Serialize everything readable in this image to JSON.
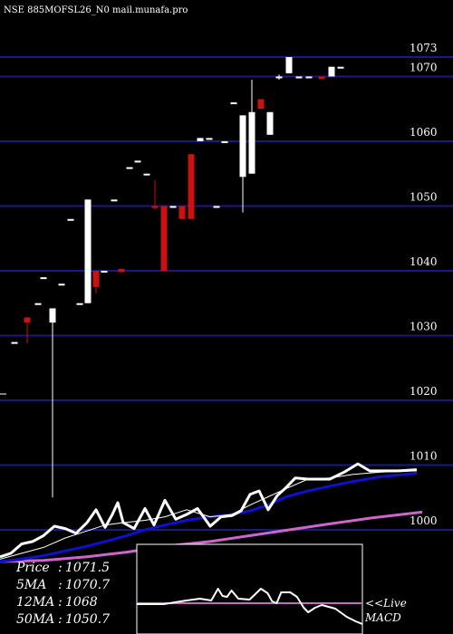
{
  "header": {
    "title": "NSE 885MOFSL26_N0  mail.munafa.pro"
  },
  "colors": {
    "background": "#000000",
    "grid": "#1a1a80",
    "up_candle": "#ffffff",
    "down_candle": "#cc1111",
    "price_line": "#ffffff",
    "ma5": "#ffffff",
    "ma12": "#1010cc",
    "ma50": "#cc66cc",
    "macd_line": "#ffffff",
    "macd_signal": "#cc66cc"
  },
  "chart_data": {
    "type": "candlestick",
    "y_ticks": [
      1000,
      1010,
      1020,
      1030,
      1040,
      1050,
      1060,
      1070,
      1073
    ],
    "ylim": [
      995,
      1077
    ],
    "candles": [
      {
        "x": 16,
        "o": 1029.0,
        "c": 1029.0,
        "h": 1029.0,
        "l": 1029.0
      },
      {
        "x": 30,
        "o": 1032.8,
        "c": 1032.0,
        "h": 1032.8,
        "l": 1028.8
      },
      {
        "x": 42,
        "o": 1035.0,
        "c": 1035.0,
        "h": 1035.0,
        "l": 1035.0
      },
      {
        "x": 48,
        "o": 1039.0,
        "c": 1039.0,
        "h": 1039.0,
        "l": 1039.0
      },
      {
        "x": 58,
        "o": 1032.0,
        "c": 1034.2,
        "h": 1034.2,
        "l": 1005.0
      },
      {
        "x": 68,
        "o": 1038.0,
        "c": 1038.0,
        "h": 1038.0,
        "l": 1038.0
      },
      {
        "x": 78,
        "o": 1048.0,
        "c": 1048.0,
        "h": 1048.0,
        "l": 1048.0
      },
      {
        "x": 88,
        "o": 1035.0,
        "c": 1035.0,
        "h": 1035.0,
        "l": 1035.0
      },
      {
        "x": 97,
        "o": 1035.0,
        "c": 1051.0,
        "h": 1051.0,
        "l": 1035.0
      },
      {
        "x": 106,
        "o": 1040.0,
        "c": 1037.5,
        "h": 1040.0,
        "l": 1036.5
      },
      {
        "x": 115,
        "o": 1040.0,
        "c": 1040.0,
        "h": 1040.0,
        "l": 1040.0
      },
      {
        "x": 126,
        "o": 1051.0,
        "c": 1051.0,
        "h": 1051.0,
        "l": 1051.0
      },
      {
        "x": 134,
        "o": 1040.3,
        "c": 1039.8,
        "h": 1040.3,
        "l": 1039.8
      },
      {
        "x": 143,
        "o": 1056.0,
        "c": 1056.0,
        "h": 1056.0,
        "l": 1056.0
      },
      {
        "x": 152,
        "o": 1057.0,
        "c": 1057.0,
        "h": 1057.0,
        "l": 1057.0
      },
      {
        "x": 162,
        "o": 1055.0,
        "c": 1055.0,
        "h": 1055.0,
        "l": 1055.0
      },
      {
        "x": 171,
        "o": 1050.0,
        "c": 1049.7,
        "h": 1054.0,
        "l": 1049.5
      },
      {
        "x": 181,
        "o": 1050.0,
        "c": 1040.0,
        "h": 1050.0,
        "l": 1040.0
      },
      {
        "x": 191,
        "o": 1050.0,
        "c": 1050.0,
        "h": 1050.0,
        "l": 1050.0
      },
      {
        "x": 201,
        "o": 1050.0,
        "c": 1048.0,
        "h": 1050.0,
        "l": 1048.0
      },
      {
        "x": 211,
        "o": 1058.0,
        "c": 1048.0,
        "h": 1058.0,
        "l": 1048.0
      },
      {
        "x": 221,
        "o": 1060.0,
        "c": 1060.5,
        "h": 1060.5,
        "l": 1060.0
      },
      {
        "x": 231,
        "o": 1060.5,
        "c": 1060.5,
        "h": 1060.5,
        "l": 1060.5
      },
      {
        "x": 239,
        "o": 1050.0,
        "c": 1050.0,
        "h": 1050.0,
        "l": 1050.0
      },
      {
        "x": 248,
        "o": 1060.0,
        "c": 1060.0,
        "h": 1060.0,
        "l": 1060.0
      },
      {
        "x": 258,
        "o": 1066.0,
        "c": 1066.0,
        "h": 1066.0,
        "l": 1066.0
      },
      {
        "x": 268,
        "o": 1054.5,
        "c": 1064.0,
        "h": 1064.0,
        "l": 1049.0
      },
      {
        "x": 278,
        "o": 1055.0,
        "c": 1064.5,
        "h": 1069.5,
        "l": 1055.0
      },
      {
        "x": 288,
        "o": 1066.5,
        "c": 1065.0,
        "h": 1066.5,
        "l": 1065.0
      },
      {
        "x": 298,
        "o": 1061.0,
        "c": 1064.5,
        "h": 1064.5,
        "l": 1061.0
      },
      {
        "x": 308,
        "o": 1070.0,
        "c": 1070.0,
        "h": 1070.3,
        "l": 1069.5
      },
      {
        "x": 319,
        "o": 1070.5,
        "c": 1073.0,
        "h": 1073.0,
        "l": 1070.5
      },
      {
        "x": 330,
        "o": 1070.0,
        "c": 1070.0,
        "h": 1070.0,
        "l": 1070.0
      },
      {
        "x": 341,
        "o": 1070.0,
        "c": 1070.0,
        "h": 1070.0,
        "l": 1070.0
      },
      {
        "x": 355,
        "o": 1070.0,
        "c": 1069.6,
        "h": 1070.0,
        "l": 1069.6
      },
      {
        "x": 366,
        "o": 1070.0,
        "c": 1071.5,
        "h": 1071.5,
        "l": 1070.0
      },
      {
        "x": 376,
        "o": 1071.5,
        "c": 1071.5,
        "h": 1071.5,
        "l": 1071.5
      }
    ],
    "price_line_pct": [
      [
        0,
        4
      ],
      [
        12,
        7
      ],
      [
        24,
        15
      ],
      [
        36,
        17
      ],
      [
        48,
        22
      ],
      [
        60,
        30
      ],
      [
        72,
        28
      ],
      [
        84,
        24
      ],
      [
        96,
        33
      ],
      [
        106,
        44
      ],
      [
        116,
        29
      ],
      [
        124,
        40
      ],
      [
        130,
        50
      ],
      [
        136,
        33
      ],
      [
        148,
        28
      ],
      [
        160,
        45
      ],
      [
        170,
        31
      ],
      [
        182,
        52
      ],
      [
        194,
        36
      ],
      [
        206,
        40
      ],
      [
        218,
        45
      ],
      [
        232,
        30
      ],
      [
        244,
        38
      ],
      [
        256,
        39
      ],
      [
        266,
        43
      ],
      [
        276,
        57
      ],
      [
        286,
        60
      ],
      [
        296,
        44
      ],
      [
        306,
        56
      ],
      [
        316,
        63
      ],
      [
        326,
        71
      ],
      [
        340,
        70
      ],
      [
        352,
        70
      ],
      [
        364,
        70
      ],
      [
        380,
        76
      ],
      [
        395,
        83
      ],
      [
        408,
        77
      ],
      [
        420,
        77
      ],
      [
        440,
        77
      ],
      [
        460,
        78
      ]
    ],
    "ma5_pct": [
      [
        0,
        2
      ],
      [
        24,
        7
      ],
      [
        48,
        12
      ],
      [
        72,
        20
      ],
      [
        96,
        26
      ],
      [
        116,
        31
      ],
      [
        136,
        33
      ],
      [
        160,
        35
      ],
      [
        182,
        38
      ],
      [
        206,
        44
      ],
      [
        232,
        38
      ],
      [
        256,
        40
      ],
      [
        276,
        48
      ],
      [
        296,
        55
      ],
      [
        316,
        62
      ],
      [
        340,
        70
      ],
      [
        364,
        71
      ],
      [
        390,
        74
      ],
      [
        420,
        76
      ],
      [
        460,
        77
      ]
    ],
    "ma12_pct": [
      [
        0,
        0
      ],
      [
        24,
        2
      ],
      [
        48,
        5
      ],
      [
        72,
        9
      ],
      [
        96,
        13
      ],
      [
        116,
        17
      ],
      [
        140,
        22
      ],
      [
        160,
        27
      ],
      [
        182,
        31
      ],
      [
        206,
        35
      ],
      [
        232,
        38
      ],
      [
        256,
        40
      ],
      [
        276,
        43
      ],
      [
        296,
        48
      ],
      [
        316,
        55
      ],
      [
        340,
        60
      ],
      [
        364,
        64
      ],
      [
        390,
        68
      ],
      [
        420,
        72
      ],
      [
        460,
        75
      ]
    ],
    "ma50_pct": [
      [
        0,
        0
      ],
      [
        48,
        1
      ],
      [
        96,
        4
      ],
      [
        140,
        8
      ],
      [
        182,
        13
      ],
      [
        232,
        17
      ],
      [
        276,
        22
      ],
      [
        320,
        27
      ],
      [
        364,
        32
      ],
      [
        410,
        37
      ],
      [
        466,
        42
      ]
    ],
    "legend": [
      {
        "label": "Price",
        "value": "1071.5"
      },
      {
        "label": "5MA",
        "value": "1070.7"
      },
      {
        "label": "12MA",
        "value": "1068"
      },
      {
        "label": "50MA",
        "value": "1050.7"
      }
    ],
    "macd": {
      "label_top": "<<Live",
      "label_bottom": "MACD",
      "signal_pct": [
        [
          0,
          35
        ],
        [
          100,
          35
        ]
      ],
      "macd_pct": [
        [
          0,
          34
        ],
        [
          12,
          34
        ],
        [
          22,
          38
        ],
        [
          28,
          40
        ],
        [
          33,
          38
        ],
        [
          36,
          51
        ],
        [
          38,
          43
        ],
        [
          40,
          42
        ],
        [
          42,
          49
        ],
        [
          45,
          40
        ],
        [
          50,
          39
        ],
        [
          55,
          51
        ],
        [
          58,
          46
        ],
        [
          60,
          37
        ],
        [
          62,
          35
        ],
        [
          64,
          47
        ],
        [
          68,
          47
        ],
        [
          71,
          42
        ],
        [
          74,
          30
        ],
        [
          76,
          25
        ],
        [
          79,
          30
        ],
        [
          82,
          33
        ],
        [
          88,
          29
        ],
        [
          93,
          20
        ],
        [
          97,
          15
        ],
        [
          100,
          12
        ]
      ]
    }
  }
}
